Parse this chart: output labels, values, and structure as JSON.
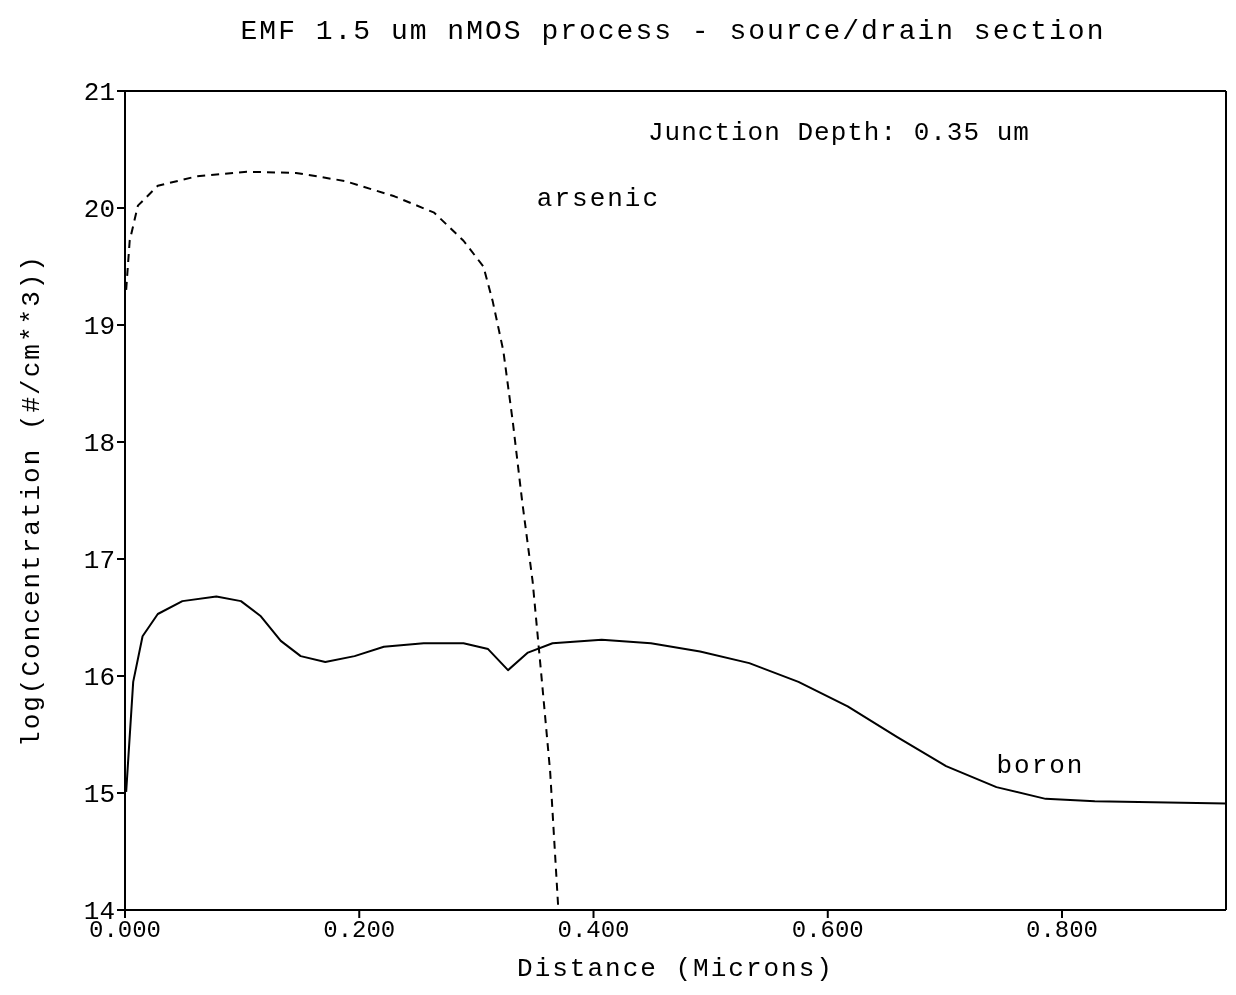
{
  "chart_data": {
    "type": "line",
    "title": "EMF 1.5 um nMOS process - source/drain section",
    "xlabel": "Distance (Microns)",
    "ylabel": "log(Concentration (#/cm**3))",
    "annotations": [
      "Junction Depth: 0.35 um"
    ],
    "xlim": [
      0,
      0.94
    ],
    "xticks": [
      {
        "value": 0,
        "label": "0.000"
      },
      {
        "value": 0.2,
        "label": "0.200"
      },
      {
        "value": 0.4,
        "label": "0.400"
      },
      {
        "value": 0.6,
        "label": "0.600"
      },
      {
        "value": 0.8,
        "label": "0.800"
      }
    ],
    "ylim": [
      14,
      21
    ],
    "yticks": [
      14,
      15,
      16,
      17,
      18,
      19,
      20,
      21
    ],
    "legend": false,
    "marker": "none",
    "series": [
      {
        "name": "arsenic",
        "color": "#000000",
        "line_style": "dashed",
        "x": [
          0.001,
          0.004,
          0.011,
          0.028,
          0.061,
          0.104,
          0.146,
          0.188,
          0.23,
          0.264,
          0.289,
          0.306,
          0.314,
          0.323,
          0.331,
          0.339,
          0.348,
          0.356,
          0.363,
          0.37
        ],
        "values": [
          19.3,
          19.72,
          20.02,
          20.19,
          20.27,
          20.31,
          20.3,
          20.23,
          20.1,
          19.96,
          19.72,
          19.5,
          19.2,
          18.78,
          18.18,
          17.5,
          16.81,
          15.95,
          15.18,
          14
        ]
      },
      {
        "name": "boron",
        "color": "#000000",
        "line_style": "solid",
        "x": [
          0.001,
          0.007,
          0.015,
          0.028,
          0.049,
          0.078,
          0.099,
          0.116,
          0.133,
          0.15,
          0.171,
          0.196,
          0.221,
          0.255,
          0.289,
          0.31,
          0.327,
          0.344,
          0.365,
          0.407,
          0.449,
          0.491,
          0.533,
          0.575,
          0.617,
          0.659,
          0.701,
          0.744,
          0.786,
          0.828,
          0.94
        ],
        "values": [
          15.01,
          15.95,
          16.34,
          16.53,
          16.64,
          16.68,
          16.64,
          16.51,
          16.3,
          16.17,
          16.12,
          16.17,
          16.25,
          16.28,
          16.28,
          16.23,
          16.05,
          16.2,
          16.28,
          16.31,
          16.28,
          16.21,
          16.11,
          15.95,
          15.74,
          15.48,
          15.23,
          15.05,
          14.95,
          14.93,
          14.91
        ]
      }
    ]
  }
}
